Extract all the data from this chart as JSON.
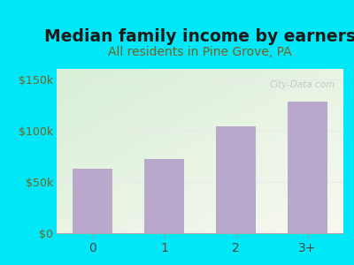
{
  "title": "Median family income by earners",
  "subtitle": "All residents in Pine Grove, PA",
  "categories": [
    "0",
    "1",
    "2",
    "3+"
  ],
  "values": [
    63000,
    72000,
    104000,
    128000
  ],
  "bar_color": "#b8a8cc",
  "title_fontsize": 13.5,
  "subtitle_fontsize": 10,
  "subtitle_color": "#7a6020",
  "title_color": "#1a1a1a",
  "ytick_color": "#7a6020",
  "xtick_color": "#444444",
  "ylim": [
    0,
    160000
  ],
  "yticks": [
    0,
    50000,
    100000,
    150000
  ],
  "ytick_labels": [
    "$0",
    "$50k",
    "$100k",
    "$150k"
  ],
  "bg_outer": "#00e8f8",
  "bg_inner_topleft": "#d8f0d8",
  "bg_inner_botright": "#f8f8f0",
  "watermark": "City-Data.com",
  "watermark_color": "#c0c0c0",
  "grid_color": "#e8e8e8"
}
